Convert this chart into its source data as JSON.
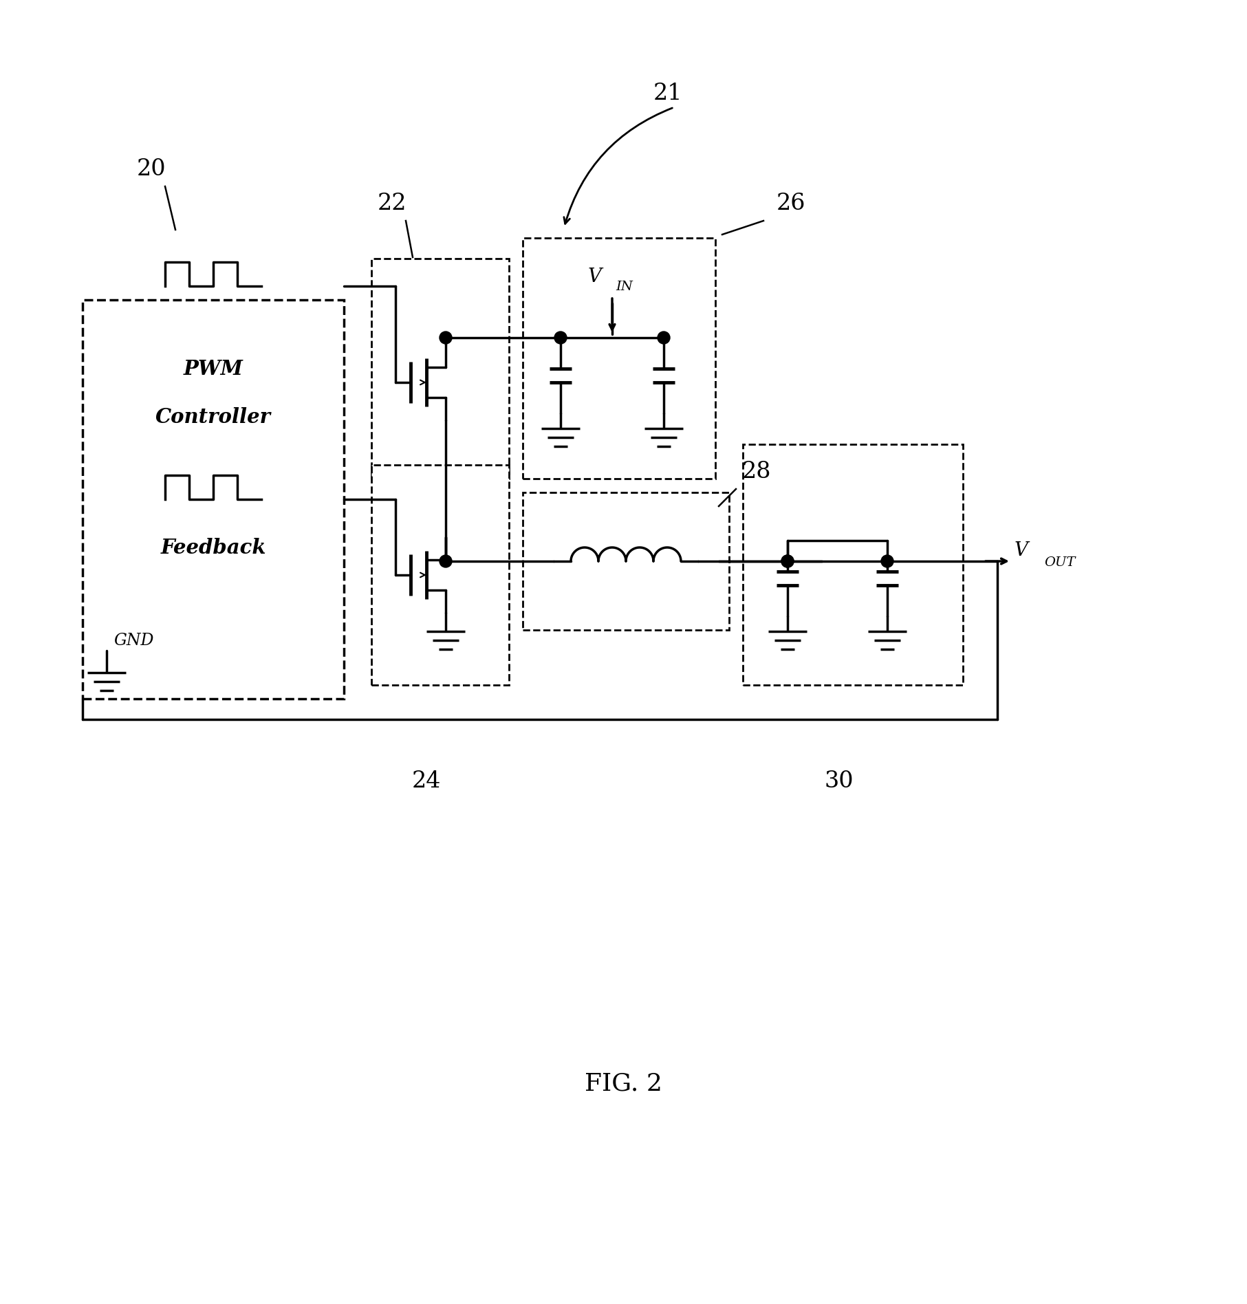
{
  "fig_width": 18.13,
  "fig_height": 18.96,
  "bg_color": "#ffffff",
  "line_color": "#000000",
  "lw": 2.5,
  "title": "FIG. 2",
  "label_21": "21",
  "label_20": "20",
  "label_22": "22",
  "label_24": "24",
  "label_26": "26",
  "label_28": "28",
  "label_30": "30",
  "pwm_text1": "PWM",
  "pwm_text2": "Controller",
  "pwm_text3": "Feedback",
  "gnd_label": "GND"
}
